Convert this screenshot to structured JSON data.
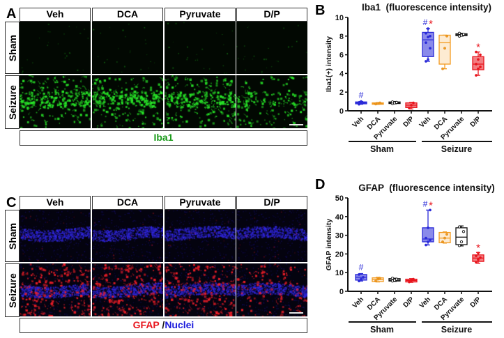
{
  "figure": {
    "panel_a": {
      "letter": "A",
      "columns": [
        "Veh",
        "DCA",
        "Pyruvate",
        "D/P"
      ],
      "rows": [
        "Sham",
        "Seizure"
      ],
      "stain_label": "Iba1",
      "stain_color": "#1a9a1a",
      "signal_color": "#22dd22"
    },
    "panel_c": {
      "letter": "C",
      "columns": [
        "Veh",
        "DCA",
        "Pyruvate",
        "D/P"
      ],
      "rows": [
        "Sham",
        "Seizure"
      ],
      "stain_label_1": "GFAP",
      "stain_label_sep": " /",
      "stain_label_2": "Nuclei",
      "stain_color_1": "#e8141c",
      "stain_color_2": "#1a1adc"
    },
    "panel_b": {
      "letter": "B",
      "title": "Iba1  (fluorescence intensity)",
      "ylabel": "Iba1(+) intensity",
      "yticks": [
        "0",
        "2",
        "4",
        "6",
        "8",
        "10"
      ],
      "xtick_labels": [
        "Veh",
        "DCA",
        "Pyruvate",
        "D/P",
        "Veh",
        "DCA",
        "Pyruvate",
        "D/P"
      ],
      "group_labels": [
        "Sham",
        "Seizure"
      ]
    },
    "panel_d": {
      "letter": "D",
      "title": "GFAP  (fluorescence intensity)",
      "ylabel": "GFAP intensity",
      "yticks": [
        "0",
        "10",
        "20",
        "30",
        "40",
        "50"
      ],
      "xtick_labels": [
        "Veh",
        "DCA",
        "Pyruvate",
        "D/P",
        "Veh",
        "DCA",
        "Pyruvate",
        "D/P"
      ],
      "group_labels": [
        "Sham",
        "Seizure"
      ]
    },
    "colors": {
      "veh": "#2a2ad8",
      "dca": "#f39a1e",
      "pyruvate": "#111111",
      "dp": "#e8141c",
      "hash_color": "#2a2ad8",
      "star_color": "#e8141c"
    },
    "annotations": {
      "hash": "#",
      "star": "*"
    }
  },
  "chart_data": [
    {
      "type": "box",
      "title": "Iba1  (fluorescence intensity)",
      "xlabel": "",
      "ylabel": "Iba1(+) intensity",
      "ylim": [
        0,
        10
      ],
      "yticks": [
        0,
        2,
        4,
        6,
        8,
        10
      ],
      "grid": false,
      "categories": [
        "Sham Veh",
        "Sham DCA",
        "Sham Pyruvate",
        "Sham D/P",
        "Seizure Veh",
        "Seizure DCA",
        "Seizure Pyruvate",
        "Seizure D/P"
      ],
      "groups": [
        "Sham",
        "Seizure"
      ],
      "series": [
        {
          "name": "Sham Veh",
          "color": "#2a2ad8",
          "min": 0.7,
          "q1": 0.75,
          "median": 0.85,
          "q3": 0.95,
          "max": 1.0,
          "points": [
            0.7,
            0.8,
            0.85,
            0.9,
            1.0
          ],
          "annotation": "#"
        },
        {
          "name": "Sham DCA",
          "color": "#f39a1e",
          "min": 0.7,
          "q1": 0.72,
          "median": 0.78,
          "q3": 0.85,
          "max": 0.88,
          "points": [
            0.72,
            0.78,
            0.85
          ]
        },
        {
          "name": "Sham Pyruvate",
          "color": "#111111",
          "min": 0.75,
          "q1": 0.78,
          "median": 0.85,
          "q3": 0.95,
          "max": 1.0,
          "points": [
            0.78,
            0.85,
            0.9,
            0.95
          ]
        },
        {
          "name": "Sham D/P",
          "color": "#e8141c",
          "min": 0.2,
          "q1": 0.35,
          "median": 0.6,
          "q3": 0.85,
          "max": 0.9,
          "points": [
            0.3,
            0.6,
            0.85
          ]
        },
        {
          "name": "Seizure Veh",
          "color": "#2a2ad8",
          "min": 5.3,
          "q1": 5.8,
          "median": 7.6,
          "q3": 8.4,
          "max": 8.8,
          "points": [
            5.3,
            5.5,
            6.7,
            7.3,
            7.9,
            8.0,
            8.3,
            8.8
          ],
          "annotation": "#*"
        },
        {
          "name": "Seizure DCA",
          "color": "#f39a1e",
          "min": 4.5,
          "q1": 5.0,
          "median": 7.3,
          "q3": 8.1,
          "max": 8.1,
          "points": [
            4.5,
            6.7,
            8.0
          ]
        },
        {
          "name": "Seizure Pyruvate",
          "color": "#111111",
          "min": 8.0,
          "q1": 8.05,
          "median": 8.15,
          "q3": 8.25,
          "max": 8.3,
          "points": [
            8.0,
            8.1,
            8.2,
            8.3
          ]
        },
        {
          "name": "Seizure D/P",
          "color": "#e8141c",
          "min": 3.8,
          "q1": 4.4,
          "median": 5.0,
          "q3": 5.8,
          "max": 6.3,
          "points": [
            3.8,
            4.5,
            4.7,
            5.0,
            5.5,
            6.0,
            6.3
          ],
          "annotation": "*"
        }
      ]
    },
    {
      "type": "box",
      "title": "GFAP  (fluorescence intensity)",
      "xlabel": "",
      "ylabel": "GFAP intensity",
      "ylim": [
        0,
        50
      ],
      "yticks": [
        0,
        10,
        20,
        30,
        40,
        50
      ],
      "grid": false,
      "categories": [
        "Sham Veh",
        "Sham DCA",
        "Sham Pyruvate",
        "Sham D/P",
        "Seizure Veh",
        "Seizure DCA",
        "Seizure Pyruvate",
        "Seizure D/P"
      ],
      "groups": [
        "Sham",
        "Seizure"
      ],
      "series": [
        {
          "name": "Sham Veh",
          "color": "#2a2ad8",
          "min": 5.5,
          "q1": 6.0,
          "median": 7.5,
          "q3": 9.0,
          "max": 9.5,
          "points": [
            5.5,
            6.5,
            7.5,
            9.0
          ],
          "annotation": "#"
        },
        {
          "name": "Sham DCA",
          "color": "#f39a1e",
          "min": 5.0,
          "q1": 5.2,
          "median": 6.3,
          "q3": 7.2,
          "max": 7.5,
          "points": [
            5.5,
            6.5,
            7.0
          ]
        },
        {
          "name": "Sham Pyruvate",
          "color": "#111111",
          "min": 5.3,
          "q1": 5.5,
          "median": 6.0,
          "q3": 6.8,
          "max": 7.0,
          "points": [
            5.5,
            6.0,
            6.5,
            7.0
          ]
        },
        {
          "name": "Sham D/P",
          "color": "#e8141c",
          "min": 4.8,
          "q1": 5.0,
          "median": 5.8,
          "q3": 6.5,
          "max": 6.8,
          "points": [
            5.0,
            5.8,
            6.5
          ]
        },
        {
          "name": "Seizure Veh",
          "color": "#2a2ad8",
          "min": 24.8,
          "q1": 26.5,
          "median": 28.0,
          "q3": 34.0,
          "max": 43.5,
          "points": [
            24.8,
            26.5,
            27.5,
            28.5,
            34.0,
            43.5
          ],
          "annotation": "#*"
        },
        {
          "name": "Seizure DCA",
          "color": "#f39a1e",
          "min": 25.8,
          "q1": 26.0,
          "median": 28.5,
          "q3": 31.5,
          "max": 31.8,
          "points": [
            26.5,
            28.5,
            30.5
          ]
        },
        {
          "name": "Seizure Pyruvate",
          "color": "#111111",
          "min": 24.3,
          "q1": 25.0,
          "median": 29.0,
          "q3": 34.0,
          "max": 35.0,
          "points": [
            24.5,
            26.5,
            32.0,
            34.5
          ]
        },
        {
          "name": "Seizure D/P",
          "color": "#e8141c",
          "min": 15.0,
          "q1": 16.0,
          "median": 17.8,
          "q3": 19.5,
          "max": 20.8,
          "points": [
            15.5,
            17.0,
            18.0,
            19.0,
            20.5
          ],
          "annotation": "*"
        }
      ]
    }
  ]
}
